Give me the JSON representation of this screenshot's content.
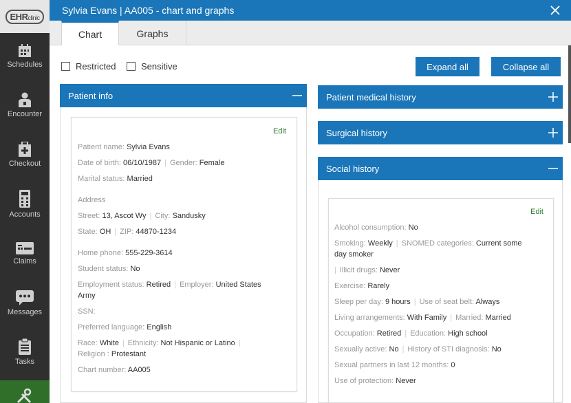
{
  "window": {
    "title": "Sylvia Evans | AA005 - chart and graphs"
  },
  "logo": {
    "text": "EHR",
    "suffix": "clinic"
  },
  "nav": [
    {
      "label": "Schedules",
      "icon": "calendar-icon"
    },
    {
      "label": "Encounter",
      "icon": "doctor-icon"
    },
    {
      "label": "Checkout",
      "icon": "medkit-icon"
    },
    {
      "label": "Accounts",
      "icon": "calculator-icon"
    },
    {
      "label": "Claims",
      "icon": "card-icon"
    },
    {
      "label": "Messages",
      "icon": "chat-icon"
    },
    {
      "label": "Tasks",
      "icon": "clipboard-icon"
    }
  ],
  "tabs": {
    "chart": "Chart",
    "graphs": "Graphs"
  },
  "filters": {
    "restricted": "Restricted",
    "sensitive": "Sensitive"
  },
  "buttons": {
    "expand_all": "Expand all",
    "collapse_all": "Collapse all"
  },
  "panels": {
    "patient_info": "Patient info",
    "medical_history": "Patient medical history",
    "surgical_history": "Surgical history",
    "social_history": "Social history"
  },
  "edit_label": "Edit",
  "patient": {
    "name_label": "Patient name:",
    "name": "Sylvia Evans",
    "dob_label": "Date of birth:",
    "dob": "06/10/1987",
    "gender_label": "Gender:",
    "gender": "Female",
    "marital_label": "Marital status:",
    "marital": "Married",
    "address_label": "Address",
    "street_label": "Street:",
    "street": "13, Ascot Wy",
    "city_label": "City:",
    "city": "Sandusky",
    "state_label": "State:",
    "state": "OH",
    "zip_label": "ZIP:",
    "zip": "44870-1234",
    "phone_label": "Home phone:",
    "phone": "555-229-3614",
    "student_label": "Student status:",
    "student": "No",
    "employment_label": "Employment status:",
    "employment": "Retired",
    "employer_label": "Employer:",
    "employer_1": "United States",
    "employer_2": "Army",
    "ssn_label": "SSN:",
    "language_label": "Preferred language:",
    "language": "English",
    "race_label": "Race:",
    "race": "White",
    "ethnicity_label": "Ethnicity:",
    "ethnicity": "Not Hispanic or Latino",
    "religion_label": "Religion :",
    "religion": "Protestant",
    "chart_label": "Chart number:",
    "chart": "AA005"
  },
  "social": {
    "alcohol_label": "Alcohol consumption:",
    "alcohol": "No",
    "smoking_label": "Smoking:",
    "smoking": "Weekly",
    "snomed_label": "SNOMED categories:",
    "snomed_1": "Current some",
    "snomed_2": "day smoker",
    "drugs_label": "Illicit drugs:",
    "drugs": "Never",
    "exercise_label": "Exercise:",
    "exercise": "Rarely",
    "sleep_label": "Sleep per day:",
    "sleep": "9 hours",
    "seatbelt_label": "Use of seat belt:",
    "seatbelt": "Always",
    "living_label": "Living arrangements:",
    "living": "With Family",
    "married_label": "Married:",
    "married": "Married",
    "occupation_label": "Occupation:",
    "occupation": "Retired",
    "education_label": "Education:",
    "education": "High school",
    "sexual_label": "Sexually active:",
    "sexual": "No",
    "sti_label": "History of STI diagnosis:",
    "sti": "No",
    "partners_label": "Sexual partners in last 12 months:",
    "partners": "0",
    "protection_label": "Use of protection:",
    "protection": "Never"
  }
}
